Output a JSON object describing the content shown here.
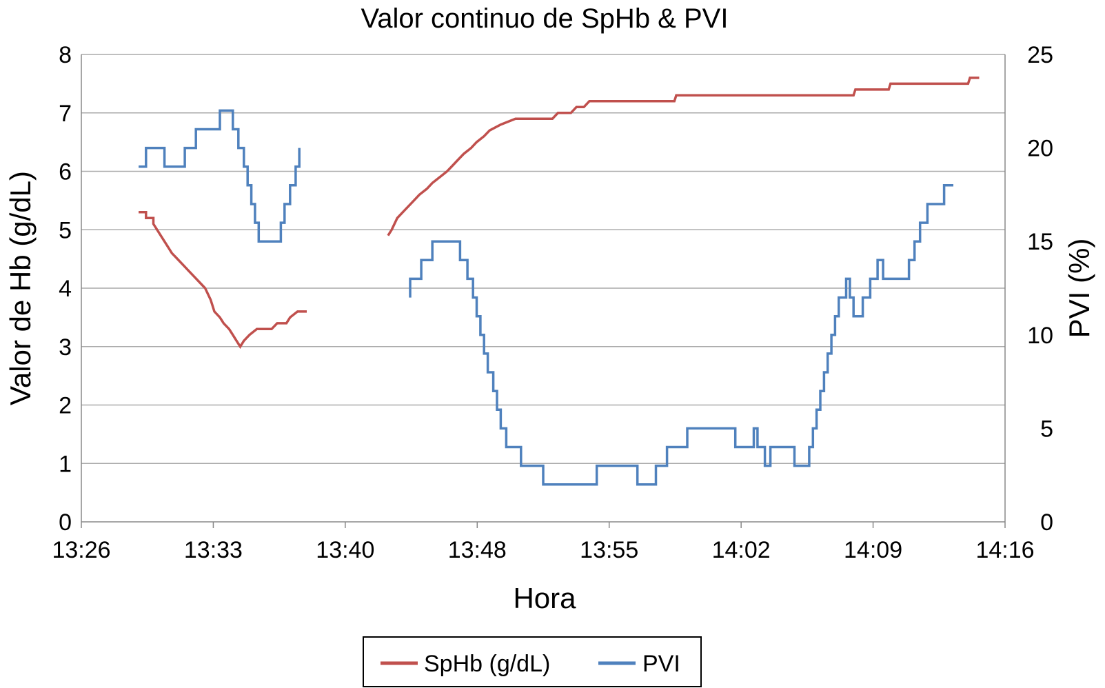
{
  "chart_data": {
    "type": "line",
    "title": "Valor continuo de SpHb & PVI",
    "xlabel": "Hora",
    "ylabel_left": "Valor de Hb (g/dL)",
    "ylabel_right": "PVI (%)",
    "x_ticks": [
      "13:26",
      "13:33",
      "13:40",
      "13:48",
      "13:55",
      "14:02",
      "14:09",
      "14:16"
    ],
    "x_range_minutes": [
      806,
      856
    ],
    "ylim_left": [
      0,
      8
    ],
    "yticks_left": [
      "0",
      "1",
      "2",
      "3",
      "4",
      "5",
      "6",
      "7",
      "8"
    ],
    "ylim_right": [
      0,
      25
    ],
    "yticks_right": [
      "0",
      "5",
      "10",
      "15",
      "20",
      "25"
    ],
    "grid": "horizontal",
    "legend_position": "bottom",
    "colors": {
      "SpHb": "#c0504d",
      "PVI": "#4f81bd",
      "grid": "#aaaaaa"
    },
    "series": [
      {
        "name": "SpHb (g/dL)",
        "axis": "left",
        "color": "#c0504d",
        "segments": [
          [
            [
              809.1,
              5.3
            ],
            [
              809.5,
              5.3
            ],
            [
              809.5,
              5.2
            ],
            [
              809.9,
              5.2
            ],
            [
              809.9,
              5.1
            ],
            [
              810.1,
              5.0
            ],
            [
              810.3,
              4.9
            ],
            [
              810.5,
              4.8
            ],
            [
              810.7,
              4.7
            ],
            [
              810.9,
              4.6
            ],
            [
              811.2,
              4.5
            ],
            [
              811.5,
              4.4
            ],
            [
              811.8,
              4.3
            ],
            [
              812.1,
              4.2
            ],
            [
              812.4,
              4.1
            ],
            [
              812.7,
              4.0
            ],
            [
              813.0,
              3.8
            ],
            [
              813.2,
              3.6
            ],
            [
              813.5,
              3.5
            ],
            [
              813.7,
              3.4
            ],
            [
              814.0,
              3.3
            ],
            [
              814.2,
              3.2
            ],
            [
              814.4,
              3.1
            ],
            [
              814.6,
              3.0
            ],
            [
              814.8,
              3.1
            ],
            [
              815.1,
              3.2
            ],
            [
              815.5,
              3.3
            ],
            [
              816.3,
              3.3
            ],
            [
              816.6,
              3.4
            ],
            [
              817.1,
              3.4
            ],
            [
              817.3,
              3.5
            ],
            [
              817.7,
              3.6
            ],
            [
              818.2,
              3.6
            ]
          ],
          [
            [
              822.6,
              4.9
            ],
            [
              822.8,
              5.0
            ],
            [
              823.1,
              5.2
            ],
            [
              823.4,
              5.3
            ],
            [
              823.7,
              5.4
            ],
            [
              824.0,
              5.5
            ],
            [
              824.3,
              5.6
            ],
            [
              824.7,
              5.7
            ],
            [
              825.0,
              5.8
            ],
            [
              825.4,
              5.9
            ],
            [
              825.8,
              6.0
            ],
            [
              826.1,
              6.1
            ],
            [
              826.4,
              6.2
            ],
            [
              826.7,
              6.3
            ],
            [
              827.1,
              6.4
            ],
            [
              827.4,
              6.5
            ],
            [
              827.8,
              6.6
            ],
            [
              828.1,
              6.7
            ],
            [
              828.7,
              6.8
            ],
            [
              829.5,
              6.9
            ],
            [
              831.5,
              6.9
            ],
            [
              831.8,
              7.0
            ],
            [
              832.5,
              7.0
            ],
            [
              832.8,
              7.1
            ],
            [
              833.2,
              7.1
            ],
            [
              833.5,
              7.2
            ],
            [
              838.1,
              7.2
            ],
            [
              838.2,
              7.3
            ],
            [
              847.8,
              7.3
            ],
            [
              847.9,
              7.4
            ],
            [
              849.7,
              7.4
            ],
            [
              849.8,
              7.5
            ],
            [
              854.0,
              7.5
            ],
            [
              854.1,
              7.6
            ],
            [
              854.6,
              7.6
            ]
          ]
        ]
      },
      {
        "name": "PVI",
        "axis": "right",
        "color": "#4f81bd",
        "segments": [
          [
            [
              809.1,
              19
            ],
            [
              809.5,
              19
            ],
            [
              809.5,
              20
            ],
            [
              810.5,
              20
            ],
            [
              810.5,
              19
            ],
            [
              811.6,
              19
            ],
            [
              811.6,
              20
            ],
            [
              812.2,
              20
            ],
            [
              812.2,
              21
            ],
            [
              813.5,
              21
            ],
            [
              813.5,
              22
            ],
            [
              814.2,
              22
            ],
            [
              814.2,
              21
            ],
            [
              814.5,
              21
            ],
            [
              814.5,
              20
            ],
            [
              814.8,
              20
            ],
            [
              814.8,
              19
            ],
            [
              815.0,
              19
            ],
            [
              815.0,
              18
            ],
            [
              815.2,
              18
            ],
            [
              815.2,
              17
            ],
            [
              815.4,
              17
            ],
            [
              815.4,
              16
            ],
            [
              815.6,
              16
            ],
            [
              815.6,
              15
            ],
            [
              816.8,
              15
            ],
            [
              816.8,
              16
            ],
            [
              817.0,
              16
            ],
            [
              817.0,
              17
            ],
            [
              817.3,
              17
            ],
            [
              817.3,
              18
            ],
            [
              817.6,
              18
            ],
            [
              817.6,
              19
            ],
            [
              817.8,
              19
            ],
            [
              817.8,
              20
            ]
          ],
          [
            [
              823.8,
              12
            ],
            [
              823.8,
              13
            ],
            [
              824.4,
              13
            ],
            [
              824.4,
              14
            ],
            [
              825.0,
              14
            ],
            [
              825.0,
              15
            ],
            [
              826.5,
              15
            ],
            [
              826.5,
              14
            ],
            [
              826.9,
              14
            ],
            [
              826.9,
              13
            ],
            [
              827.2,
              13
            ],
            [
              827.2,
              12
            ],
            [
              827.4,
              12
            ],
            [
              827.4,
              11
            ],
            [
              827.6,
              11
            ],
            [
              827.6,
              10
            ],
            [
              827.8,
              10
            ],
            [
              827.8,
              9
            ],
            [
              828.0,
              9
            ],
            [
              828.0,
              8
            ],
            [
              828.3,
              8
            ],
            [
              828.3,
              7
            ],
            [
              828.5,
              7
            ],
            [
              828.5,
              6
            ],
            [
              828.7,
              6
            ],
            [
              828.7,
              5
            ],
            [
              829.0,
              5
            ],
            [
              829.0,
              4
            ],
            [
              829.8,
              4
            ],
            [
              829.8,
              3
            ],
            [
              831.0,
              3
            ],
            [
              831.0,
              2
            ],
            [
              833.9,
              2
            ],
            [
              833.9,
              3
            ],
            [
              836.1,
              3
            ],
            [
              836.1,
              2
            ],
            [
              837.1,
              2
            ],
            [
              837.1,
              3
            ],
            [
              837.7,
              3
            ],
            [
              837.7,
              4
            ],
            [
              838.8,
              4
            ],
            [
              838.8,
              5
            ],
            [
              841.4,
              5
            ],
            [
              841.4,
              4
            ],
            [
              842.4,
              4
            ],
            [
              842.4,
              5
            ],
            [
              842.6,
              5
            ],
            [
              842.6,
              4
            ],
            [
              843.0,
              4
            ],
            [
              843.0,
              3
            ],
            [
              843.3,
              3
            ],
            [
              843.3,
              4
            ],
            [
              844.6,
              4
            ],
            [
              844.6,
              3
            ],
            [
              845.4,
              3
            ],
            [
              845.4,
              4
            ],
            [
              845.6,
              4
            ],
            [
              845.6,
              5
            ],
            [
              845.8,
              5
            ],
            [
              845.8,
              6
            ],
            [
              846.0,
              6
            ],
            [
              846.0,
              7
            ],
            [
              846.2,
              7
            ],
            [
              846.2,
              8
            ],
            [
              846.4,
              8
            ],
            [
              846.4,
              9
            ],
            [
              846.6,
              9
            ],
            [
              846.6,
              10
            ],
            [
              846.8,
              10
            ],
            [
              846.8,
              11
            ],
            [
              847.0,
              11
            ],
            [
              847.0,
              12
            ],
            [
              847.4,
              12
            ],
            [
              847.4,
              13
            ],
            [
              847.6,
              13
            ],
            [
              847.6,
              12
            ],
            [
              847.8,
              12
            ],
            [
              847.8,
              11
            ],
            [
              848.3,
              11
            ],
            [
              848.3,
              12
            ],
            [
              848.7,
              12
            ],
            [
              848.7,
              13
            ],
            [
              849.1,
              13
            ],
            [
              849.1,
              14
            ],
            [
              849.4,
              14
            ],
            [
              849.4,
              13
            ],
            [
              850.8,
              13
            ],
            [
              850.8,
              14
            ],
            [
              851.1,
              14
            ],
            [
              851.1,
              15
            ],
            [
              851.4,
              15
            ],
            [
              851.4,
              16
            ],
            [
              851.8,
              16
            ],
            [
              851.8,
              17
            ],
            [
              852.7,
              17
            ],
            [
              852.7,
              18
            ],
            [
              853.2,
              18
            ]
          ]
        ]
      }
    ]
  }
}
